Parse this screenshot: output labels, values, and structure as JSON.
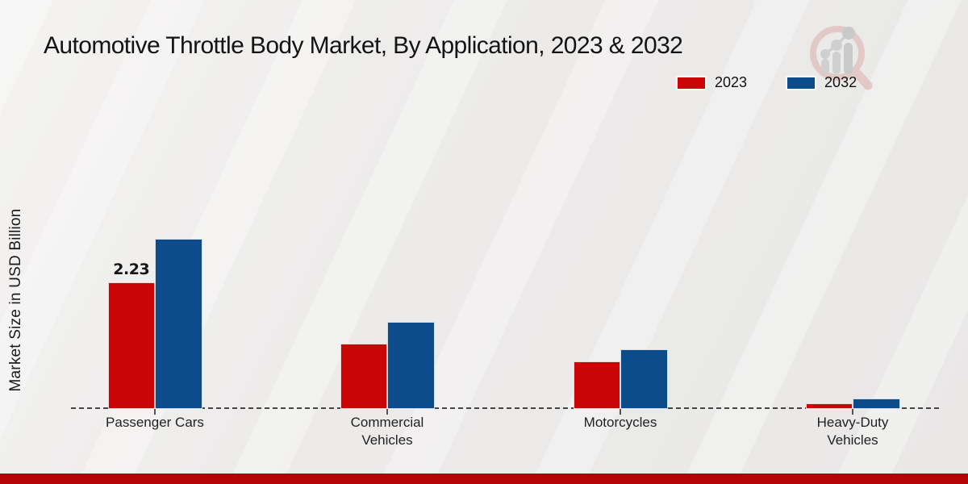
{
  "header": {
    "title": "Automotive Throttle Body Market, By Application, 2023 & 2032"
  },
  "legend": {
    "items": [
      {
        "label": "2023",
        "color": "#c90505"
      },
      {
        "label": "2032",
        "color": "#0d4c8b"
      }
    ]
  },
  "y_axis_label": "Market Size in USD Billion",
  "icons": {
    "logo": "magnifier-growth-chart-logo"
  },
  "colors": {
    "bar_red": "#c90505",
    "bar_blue": "#0d4c8b",
    "footer_strip": "#b30505",
    "baseline": "#454545"
  },
  "chart_data": {
    "type": "bar",
    "title": "Automotive Throttle Body Market, By Application, 2023 & 2032",
    "ylabel": "Market Size in USD Billion",
    "xlabel": "",
    "categories": [
      "Passenger Cars",
      "Commercial Vehicles",
      "Motorcycles",
      "Heavy-Duty Vehicles"
    ],
    "series": [
      {
        "name": "2023",
        "color": "#c90505",
        "values": [
          2.23,
          1.15,
          0.83,
          0.1
        ]
      },
      {
        "name": "2032",
        "color": "#0d4c8b",
        "values": [
          2.99,
          1.53,
          1.05,
          0.18
        ]
      }
    ],
    "data_labels": [
      {
        "category": "Passenger Cars",
        "series": "2023",
        "text": "2.23"
      }
    ],
    "ylim": [
      0,
      3.2
    ],
    "grid": false,
    "baseline_style": "dashed",
    "legend_position": "top-right"
  }
}
